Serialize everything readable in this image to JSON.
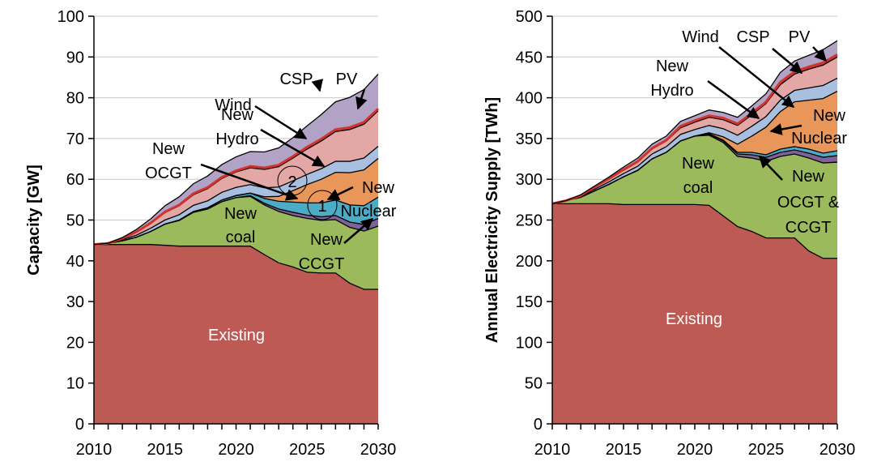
{
  "chart_data": [
    {
      "type": "area",
      "stacked": true,
      "ylabel": "Capacity [GW]",
      "xlabel": "",
      "xlim": [
        2010,
        2030
      ],
      "ylim": [
        0,
        100
      ],
      "xticks": [
        2010,
        2015,
        2020,
        2025,
        2030
      ],
      "yticks": [
        0,
        10,
        20,
        30,
        40,
        50,
        60,
        70,
        80,
        90,
        100
      ],
      "grid": true,
      "legend": "none",
      "x": [
        2010,
        2011,
        2012,
        2013,
        2014,
        2015,
        2016,
        2017,
        2018,
        2019,
        2020,
        2021,
        2022,
        2023,
        2024,
        2025,
        2026,
        2027,
        2028,
        2029,
        2030
      ],
      "series": [
        {
          "name": "Existing",
          "color": "#be5a54",
          "values": [
            44,
            44,
            44,
            44,
            44,
            43.8,
            43.6,
            43.6,
            43.6,
            43.6,
            43.6,
            43.6,
            41.5,
            39.5,
            38.5,
            37.2,
            37,
            37,
            34.5,
            33,
            33
          ]
        },
        {
          "name": "New coal",
          "color": "#9bba5b",
          "values": [
            0,
            0.3,
            0.9,
            1.8,
            3.2,
            5.2,
            6.3,
            8.3,
            9.1,
            10.9,
            11.9,
            12.2,
            12.2,
            12.6,
            12.6,
            13.2,
            12.9,
            13.1,
            13.7,
            14.3,
            15.5
          ]
        },
        {
          "name": "New CCGT",
          "color": "#7e6399",
          "values": [
            0,
            0,
            0,
            0,
            0,
            0,
            0,
            0,
            0,
            0,
            0,
            0.2,
            0.4,
            0.6,
            0.8,
            0.8,
            0.9,
            1,
            1.3,
            1.6,
            1.9
          ]
        },
        {
          "name": "New OCGT",
          "color": "#4bacc6",
          "values": [
            0,
            0,
            0,
            0,
            0,
            0,
            0.1,
            0.2,
            0.3,
            0.4,
            0.5,
            0.6,
            1.2,
            1.9,
            2.5,
            3,
            3.4,
            3.8,
            4.2,
            4.6,
            5.2
          ]
        },
        {
          "name": "New Nuclear",
          "color": "#e9965a",
          "values": [
            0,
            0,
            0,
            0,
            0,
            0,
            0,
            0,
            0,
            0,
            0,
            0,
            0.4,
            1.2,
            2.8,
            4.5,
            5.8,
            6.8,
            7.9,
            8.8,
            9.5
          ]
        },
        {
          "name": "New Hydro",
          "color": "#a8bfe0",
          "values": [
            0,
            0,
            0.3,
            0.5,
            0.8,
            1,
            1.3,
            1.5,
            1.7,
            1.9,
            2,
            2.1,
            2.2,
            2.3,
            2.4,
            2.5,
            2.6,
            2.7,
            2.8,
            2.9,
            3
          ]
        },
        {
          "name": "Wind",
          "color": "#e3a8a6",
          "values": [
            0,
            0,
            0.3,
            0.7,
            1.2,
            1.8,
            2.2,
            2.6,
            3,
            3.4,
            3.8,
            4.1,
            4.5,
            5,
            5.6,
            6.2,
            6.8,
            7.3,
            7.8,
            8.3,
            8.7
          ]
        },
        {
          "name": "CSP",
          "color": "#d0342c",
          "values": [
            0,
            0,
            0,
            0.1,
            0.1,
            0.2,
            0.2,
            0.3,
            0.3,
            0.3,
            0.3,
            0.4,
            0.4,
            0.4,
            0.4,
            0.5,
            0.5,
            0.5,
            0.5,
            0.5,
            0.5
          ]
        },
        {
          "name": "PV",
          "color": "#b2a3c6",
          "values": [
            0,
            0,
            0.2,
            0.6,
            1,
            1.5,
            2,
            2.4,
            2.8,
            3.1,
            3.4,
            3.6,
            3.9,
            4.2,
            4.6,
            5.2,
            6,
            6.8,
            7.4,
            8,
            8.5
          ]
        }
      ],
      "labels": {
        "existing": "Existing",
        "new_coal": [
          "New",
          "coal"
        ],
        "new_ccgt": [
          "New",
          "CCGT"
        ],
        "new_ocgt": [
          "New",
          "OCGT"
        ],
        "new_hydro": [
          "New",
          "Hydro"
        ],
        "wind": "Wind",
        "csp": "CSP",
        "pv": "PV",
        "new_nuclear": [
          "New",
          "Nuclear"
        ]
      },
      "markers": [
        "1",
        "2"
      ]
    },
    {
      "type": "area",
      "stacked": true,
      "ylabel": "Annual Electricity Supply [TWh]",
      "xlabel": "",
      "xlim": [
        2010,
        2030
      ],
      "ylim": [
        0,
        500
      ],
      "xticks": [
        2010,
        2015,
        2020,
        2025,
        2030
      ],
      "yticks": [
        0,
        50,
        100,
        150,
        200,
        250,
        300,
        350,
        400,
        450,
        500
      ],
      "grid": true,
      "legend": "none",
      "x": [
        2010,
        2011,
        2012,
        2013,
        2014,
        2015,
        2016,
        2017,
        2018,
        2019,
        2020,
        2021,
        2022,
        2023,
        2024,
        2025,
        2026,
        2027,
        2028,
        2029,
        2030
      ],
      "series": [
        {
          "name": "Existing",
          "color": "#be5a54",
          "values": [
            270,
            270,
            270,
            270,
            270,
            269,
            269,
            269,
            269,
            269,
            269,
            268,
            255,
            242,
            236,
            228,
            228,
            228,
            212,
            203,
            203
          ]
        },
        {
          "name": "New coal",
          "color": "#9bba5b",
          "values": [
            0,
            4,
            8,
            16,
            24,
            34,
            42,
            56,
            64,
            78,
            84,
            86,
            90,
            86,
            90,
            94,
            100,
            103,
            114,
            117,
            118
          ]
        },
        {
          "name": "New OCGT & CCGT",
          "color": "#7e6399",
          "values": [
            0,
            0,
            0,
            0,
            0,
            0,
            0,
            0,
            0,
            0,
            0,
            1,
            2,
            3,
            4,
            5,
            5,
            5,
            6,
            7,
            8
          ]
        },
        {
          "name": "New OCGT & CCGT",
          "color": "#4bacc6",
          "values": [
            0,
            0,
            0,
            0,
            0,
            0,
            0,
            0,
            0,
            0,
            0,
            1,
            1,
            2,
            3,
            3,
            4,
            4,
            5,
            5,
            6
          ]
        },
        {
          "name": "New Nuclear",
          "color": "#e9965a",
          "values": [
            0,
            0,
            0,
            0,
            0,
            0,
            0,
            0,
            0,
            0,
            0,
            1,
            4,
            10,
            20,
            34,
            46,
            55,
            60,
            67,
            73
          ]
        },
        {
          "name": "New Hydro",
          "color": "#a8bfe0",
          "values": [
            0,
            0,
            1,
            2,
            3,
            4,
            5,
            6,
            7,
            8,
            8,
            9,
            10,
            11,
            12,
            13,
            14,
            14,
            15,
            16,
            16
          ]
        },
        {
          "name": "Wind",
          "color": "#e3a8a6",
          "values": [
            0,
            0,
            1,
            2,
            3,
            4,
            5,
            6,
            7,
            8,
            9,
            10,
            11,
            12,
            14,
            16,
            19,
            20,
            23,
            25,
            26
          ]
        },
        {
          "name": "CSP",
          "color": "#d0342c",
          "values": [
            0,
            0,
            0,
            1,
            1,
            1,
            1,
            1,
            1,
            2,
            2,
            2,
            2,
            2,
            2,
            2,
            3,
            3,
            3,
            3,
            3
          ]
        },
        {
          "name": "PV",
          "color": "#b2a3c6",
          "values": [
            0,
            0,
            1,
            1,
            2,
            3,
            4,
            5,
            5,
            6,
            6,
            7,
            7,
            8,
            9,
            10,
            12,
            13,
            14,
            16,
            17
          ]
        }
      ],
      "labels": {
        "existing": "Existing",
        "new_coal": [
          "New",
          "coal"
        ],
        "new_ocgt_ccgt": [
          "New",
          "OCGT &",
          "CCGT"
        ],
        "new_hydro": [
          "New",
          "Hydro"
        ],
        "wind": "Wind",
        "csp": "CSP",
        "pv": "PV",
        "new_nuclear": [
          "New",
          "Nuclear"
        ]
      }
    }
  ]
}
